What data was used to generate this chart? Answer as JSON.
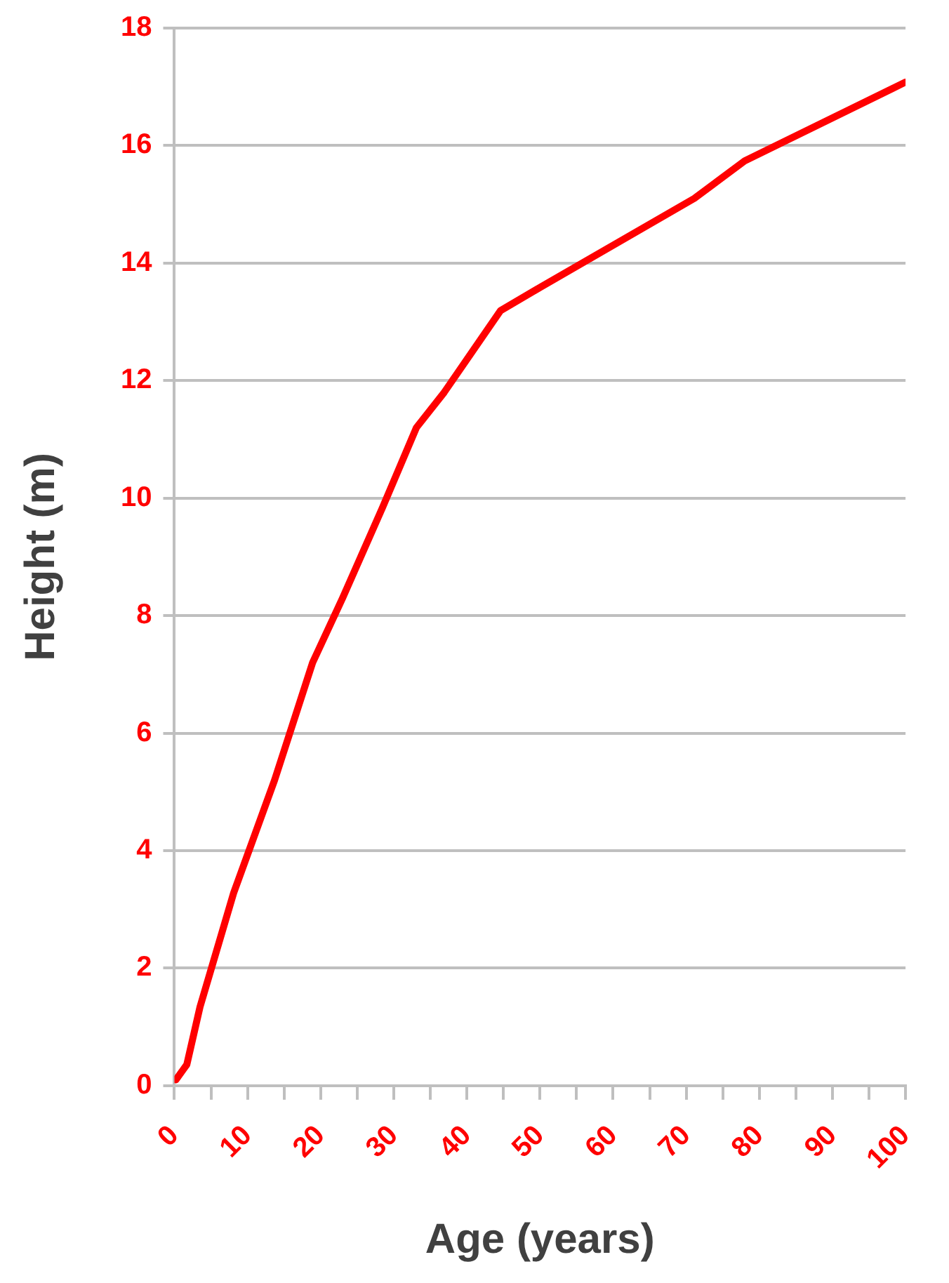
{
  "chart_data": {
    "type": "line",
    "xlabel": "Age (years)",
    "ylabel": "Height (m)",
    "x": [
      0.2,
      1.7,
      3.5,
      8.1,
      13.7,
      18.9,
      23,
      28.5,
      33.1,
      36.9,
      44.6,
      50.2,
      71.1,
      78,
      100
    ],
    "series": [
      {
        "color": "#ff0000",
        "values": [
          0.1,
          0.36,
          1.34,
          3.28,
          5.2,
          7.2,
          8.3,
          9.85,
          11.2,
          11.8,
          13.19,
          13.6,
          15.1,
          15.74,
          17.08
        ]
      }
    ],
    "xlim": [
      0,
      100
    ],
    "xticks": [
      0,
      {
        "value": 5,
        "label": null
      },
      10,
      {
        "value": 15,
        "label": null
      },
      20,
      {
        "value": 25,
        "label": null
      },
      30,
      {
        "value": 35,
        "label": null
      },
      40,
      {
        "value": 45,
        "label": null
      },
      50,
      {
        "value": 55,
        "label": null
      },
      60,
      {
        "value": 65,
        "label": null
      },
      70,
      {
        "value": 75,
        "label": null
      },
      80,
      {
        "value": 85,
        "label": null
      },
      90,
      {
        "value": 95,
        "label": null
      },
      100
    ],
    "ylim": [
      0,
      18
    ],
    "yticks": [
      0,
      2,
      4,
      6,
      8,
      10,
      12,
      14,
      16,
      18
    ],
    "grid": "y",
    "legend": false,
    "marker": "none",
    "line_style": "solid"
  }
}
